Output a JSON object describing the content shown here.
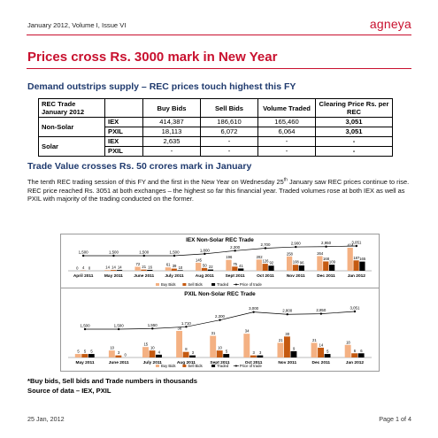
{
  "header": {
    "issue": "January 2012, Volume I, Issue VI",
    "brand": "agneya"
  },
  "title": "Prices cross Rs. 3000 mark in New Year",
  "section1": {
    "heading": "Demand outstrips supply – REC prices touch highest this FY"
  },
  "table": {
    "corner_line1": "REC Trade",
    "corner_line2": "January 2012",
    "columns": [
      "Buy Bids",
      "Sell Bids",
      "Volume Traded",
      "Clearing Price Rs. per REC"
    ],
    "groups": [
      {
        "label": "Non-Solar",
        "rows": [
          {
            "exchange": "IEX",
            "values": [
              "414,387",
              "186,610",
              "165,460",
              "3,051"
            ]
          },
          {
            "exchange": "PXIL",
            "values": [
              "18,113",
              "6,072",
              "6,064",
              "3,051"
            ]
          }
        ]
      },
      {
        "label": "Solar",
        "rows": [
          {
            "exchange": "IEX",
            "values": [
              "2,635",
              "-",
              "-",
              "-"
            ]
          },
          {
            "exchange": "PXIL",
            "values": [
              "-",
              "-",
              "-",
              "-"
            ]
          }
        ]
      }
    ]
  },
  "section2": {
    "heading": "Trade Value crosses Rs. 50 crores mark in January",
    "para_a": "The tenth REC trading session of this FY and the first in the New Year on Wednesday 25",
    "para_sup": "th",
    "para_b": " January saw REC prices continue to rise. REC price reached Rs. 3051 at both exchanges – the highest so far this financial year. Traded volumes rose at both IEX as well as PXIL with majority of the trading conducted on the former."
  },
  "chart_data": [
    {
      "type": "bar",
      "title": "IEX Non-Solar REC Trade",
      "categories": [
        "April 2011",
        "May 2011",
        "June 2011",
        "July 2011",
        "Aug 2011",
        "Sept 2011",
        "Oct 2011",
        "Nov 2011",
        "Dec 2011",
        "Jan 2012"
      ],
      "series": [
        {
          "name": "Buy Bids",
          "type": "bar",
          "color": "#f4b183",
          "values": [
            0,
            14,
            72,
            61,
            145,
            196,
            202,
            258,
            264,
            414
          ],
          "labels": [
            "0",
            "14",
            "72",
            "61",
            "145",
            "196",
            "202",
            "258",
            "264",
            "414"
          ]
        },
        {
          "name": "Sell Bids",
          "type": "bar",
          "color": "#c55a11",
          "values": [
            4,
            14,
            21,
            39,
            50,
            75,
            126,
            108,
            168,
            187
          ],
          "labels": [
            "4",
            "14",
            "21",
            "39",
            "50",
            "75",
            "126",
            "108",
            "168",
            "187"
          ]
        },
        {
          "name": "Traded",
          "type": "bar",
          "color": "#000000",
          "values": [
            0,
            14,
            16,
            10,
            22,
            41,
            92,
            96,
            109,
            165
          ],
          "labels": [
            "0",
            "14",
            "16",
            "10",
            "22",
            "41",
            "92",
            "96",
            "109",
            "165"
          ]
        },
        {
          "name": "Price of trade",
          "type": "line",
          "color": "#000000",
          "values": [
            1500,
            1500,
            1500,
            1500,
            1800,
            2300,
            2700,
            2900,
            2950,
            3051
          ],
          "labels": [
            "1,500",
            "1,500",
            "1,500",
            "1,500",
            "1,800",
            "2,300",
            "2,700",
            "2,900",
            "2,950",
            "3,051"
          ]
        }
      ]
    },
    {
      "type": "bar",
      "title": "PXIL Non-Solar REC Trade",
      "categories": [
        "May 2011",
        "June 2011",
        "July 2011",
        "Aug 2011",
        "Sept 2011",
        "Oct 2011",
        "Nov 2011",
        "Dec 2011",
        "Jan 2012"
      ],
      "series": [
        {
          "name": "Buy Bids",
          "type": "bar",
          "color": "#f4b183",
          "values": [
            5,
            10,
            15,
            38,
            31,
            34,
            21,
            21,
            18
          ],
          "labels": [
            "5",
            "10",
            "15",
            "38",
            "31",
            "34",
            "21",
            "21",
            "18"
          ]
        },
        {
          "name": "Sell Bids",
          "type": "bar",
          "color": "#c55a11",
          "values": [
            5,
            3,
            10,
            8,
            10,
            3,
            30,
            14,
            6
          ],
          "labels": [
            "5",
            "3",
            "10",
            "8",
            "10",
            "3",
            "30",
            "14",
            "6"
          ]
        },
        {
          "name": "Traded",
          "type": "bar",
          "color": "#000000",
          "values": [
            5,
            0,
            4,
            3,
            5,
            3,
            9,
            5,
            6
          ],
          "labels": [
            "5",
            "0",
            "4",
            "3",
            "5",
            "3",
            "9",
            "5",
            "6"
          ]
        },
        {
          "name": "Price of trade",
          "type": "line",
          "color": "#000000",
          "values": [
            1500,
            1500,
            1550,
            1710,
            2300,
            3000,
            2800,
            2850,
            3051
          ],
          "labels": [
            "1,500",
            "1,500",
            "1,550",
            "1,710",
            "2,300",
            "3,000",
            "2,800",
            "2,850",
            "3,051"
          ]
        }
      ]
    }
  ],
  "footnote": {
    "line1": "*Buy bids, Sell bids and Trade numbers in thousands",
    "line2": "Source of data – IEX, PXIL"
  },
  "footer": {
    "date": "25 Jan, 2012",
    "page": "Page 1 of 4"
  }
}
